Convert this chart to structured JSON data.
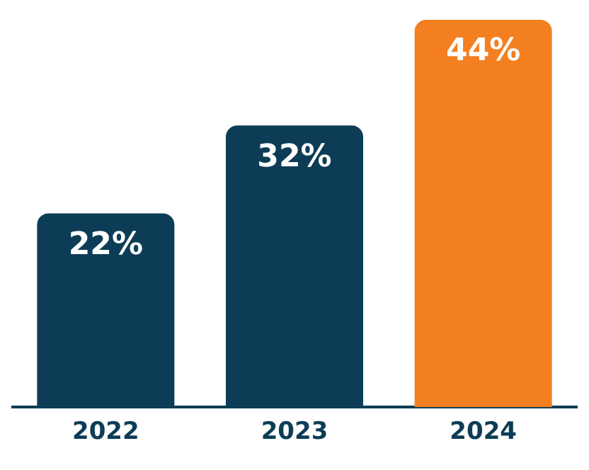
{
  "chart_data": {
    "type": "bar",
    "categories": [
      "2022",
      "2023",
      "2024"
    ],
    "values": [
      22,
      32,
      44
    ],
    "colors": [
      "#0d3d56",
      "#0d3d56",
      "#f47f20"
    ],
    "value_labels": [
      "22%",
      "32%",
      "44%"
    ],
    "grid": false,
    "legend": false
  }
}
